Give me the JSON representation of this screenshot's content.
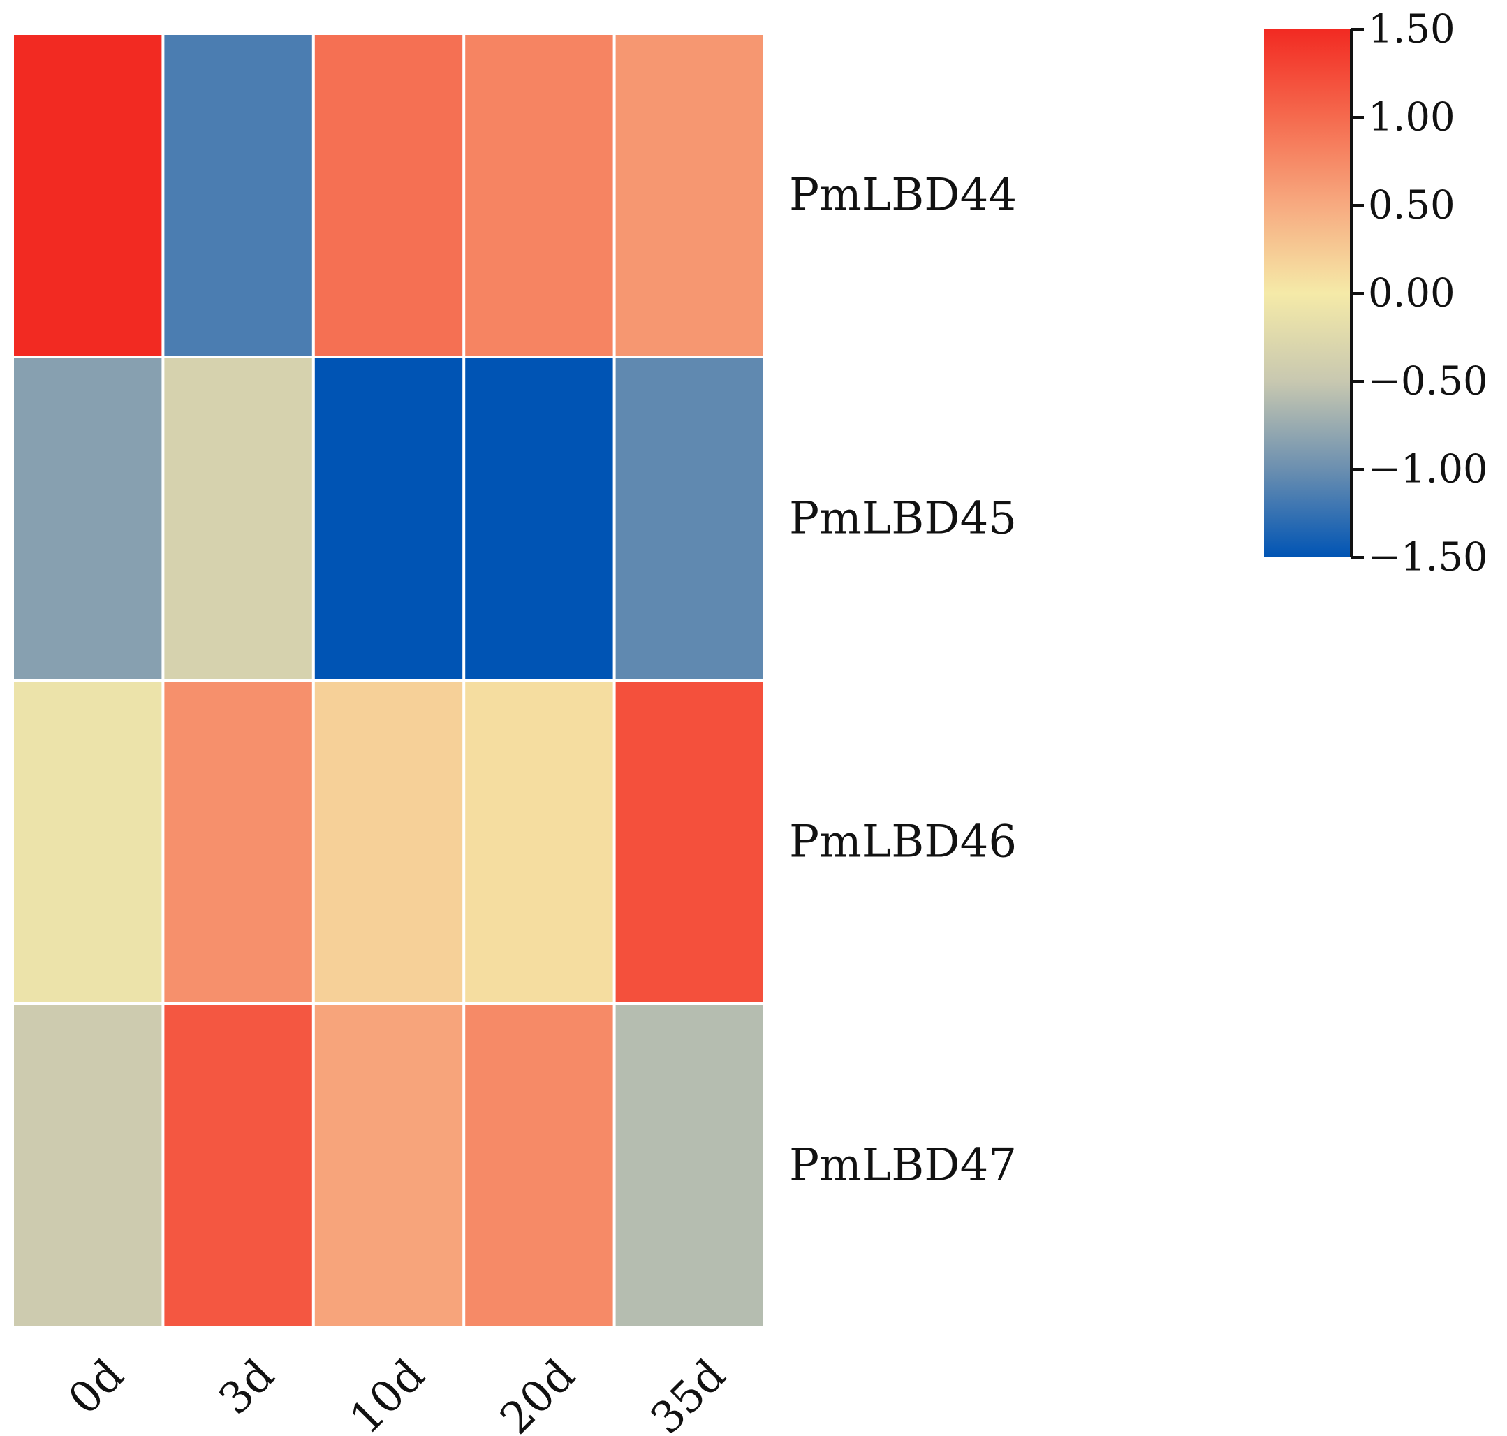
{
  "chart_data": {
    "type": "heatmap",
    "title": "",
    "xlabel": "",
    "ylabel": "",
    "columns": [
      "0d",
      "3d",
      "10d",
      "20d",
      "35d"
    ],
    "rows": [
      "PmLBD44",
      "PmLBD45",
      "PmLBD46",
      "PmLBD47"
    ],
    "values": [
      [
        1.5,
        -1.15,
        0.95,
        0.8,
        0.65
      ],
      [
        -0.85,
        -0.35,
        -1.5,
        -1.5,
        -1.05
      ],
      [
        -0.1,
        0.7,
        0.2,
        0.1,
        1.2
      ],
      [
        -0.45,
        1.15,
        0.55,
        0.75,
        -0.6
      ]
    ],
    "colorbar": {
      "range": [
        -1.5,
        1.5
      ],
      "ticks": [
        1.5,
        1.0,
        0.5,
        0.0,
        -0.5,
        -1.0,
        -1.5
      ],
      "tick_labels": [
        "1.50",
        "1.00",
        "0.50",
        "0.00",
        "−0.50",
        "−1.00",
        "−1.50"
      ],
      "colors": [
        "#0054b4",
        "#6b8fb0",
        "#c8c8b0",
        "#f5eaa8",
        "#f7aa80",
        "#f56a4e",
        "#f22a22"
      ]
    }
  }
}
